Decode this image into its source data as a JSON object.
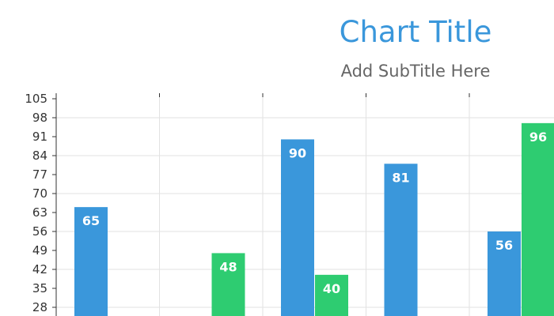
{
  "chart_data": {
    "type": "bar",
    "title": "Chart Title",
    "subtitle": "Add SubTitle Here",
    "ylim": [
      28,
      105
    ],
    "yticks": [
      105,
      98,
      91,
      84,
      77,
      70,
      63,
      56,
      49,
      42,
      35,
      28
    ],
    "grid": true,
    "categories": [
      "",
      "",
      "",
      "",
      ""
    ],
    "series": [
      {
        "values": [
          65,
          null,
          90,
          81,
          56
        ],
        "color": "#3a97db"
      },
      {
        "values": [
          null,
          48,
          40,
          null,
          96
        ],
        "color": "#2ecc71"
      }
    ]
  }
}
